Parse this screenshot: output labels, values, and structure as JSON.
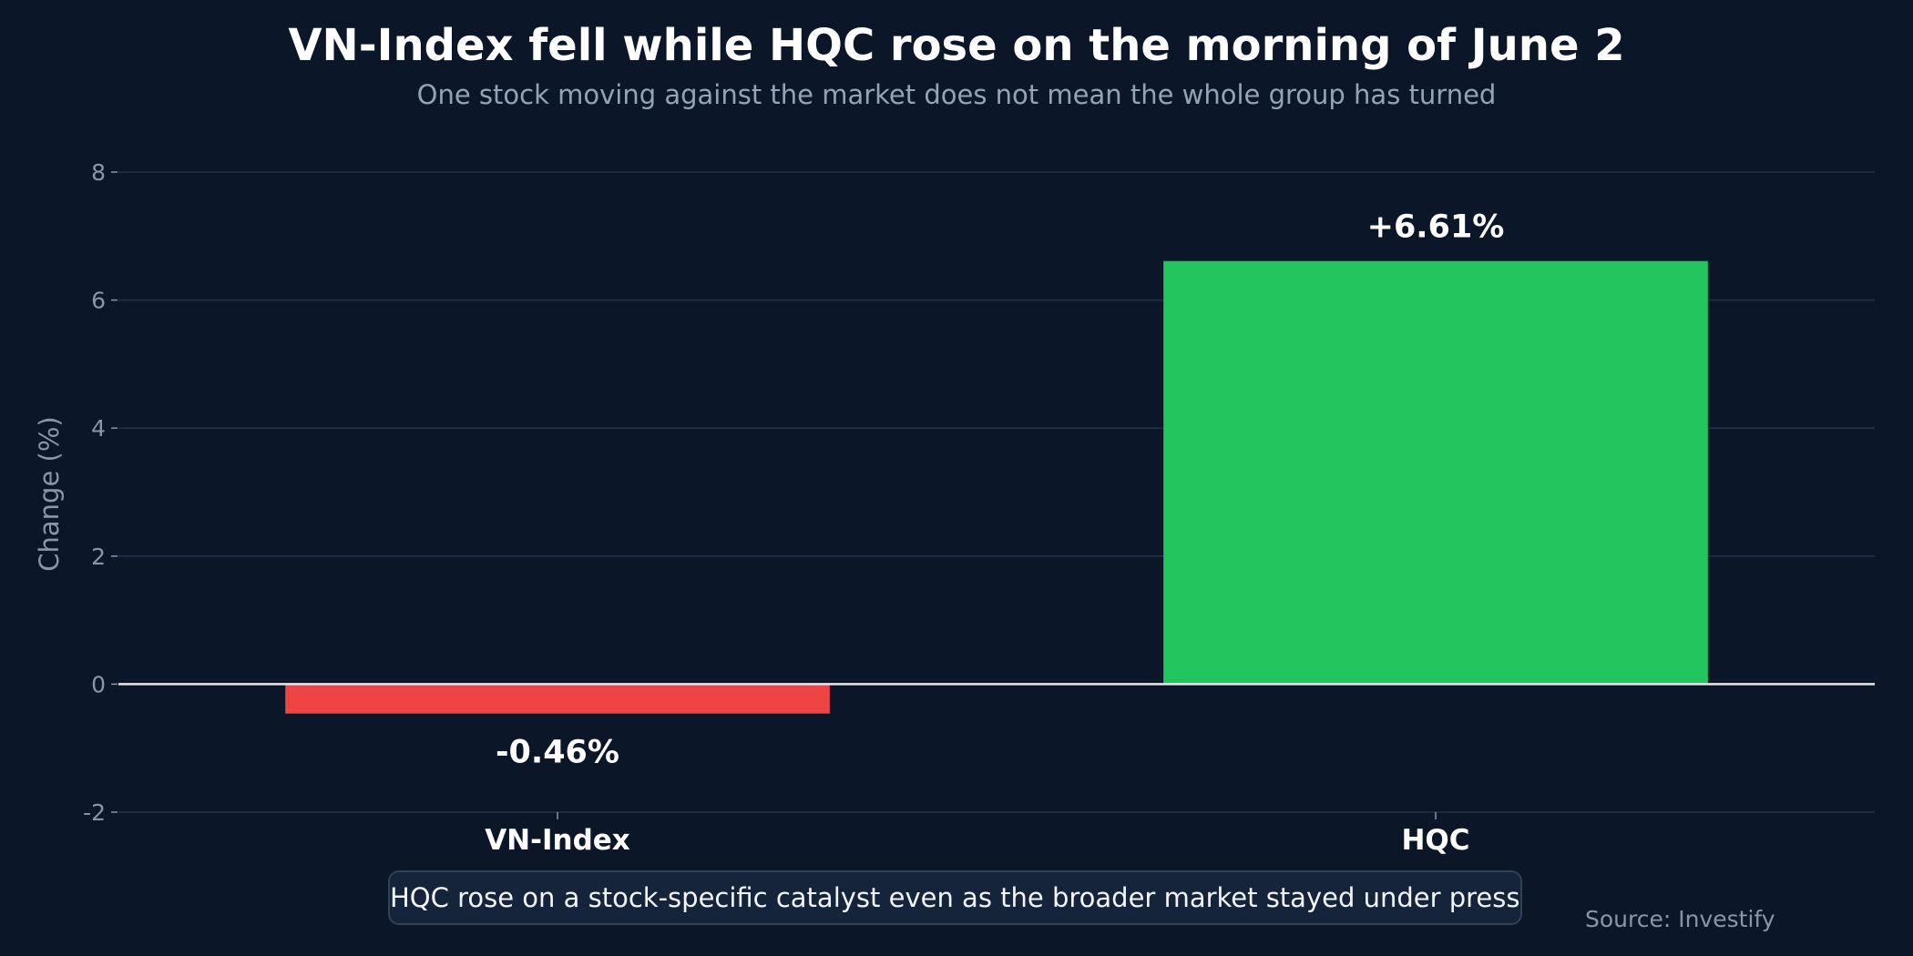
{
  "chart_data": {
    "type": "bar",
    "title": "VN-Index fell while HQC rose on the morning of June 2",
    "subtitle": "One stock moving against the market does not mean the whole group has turned",
    "categories": [
      "VN-Index",
      "HQC"
    ],
    "values": [
      -0.46,
      6.61
    ],
    "data_labels": [
      "-0.46%",
      "+6.61%"
    ],
    "bar_colors": [
      "#ef4444",
      "#22c55e"
    ],
    "xlabel": "",
    "ylabel": "Change (%)",
    "ylim": [
      -2,
      8
    ],
    "yticks": [
      -2,
      0,
      2,
      4,
      6,
      8
    ],
    "grid": true,
    "legend": "none",
    "annotation": "HQC rose on a stock-specific catalyst even as the broader market stayed under pressure.",
    "source": "Source: Investify"
  },
  "colors": {
    "background": "#0b1729",
    "grid": "#23324a",
    "zero_line": "#e5e7eb",
    "tick_text": "#8b95a6",
    "label_text": "#ffffff"
  }
}
